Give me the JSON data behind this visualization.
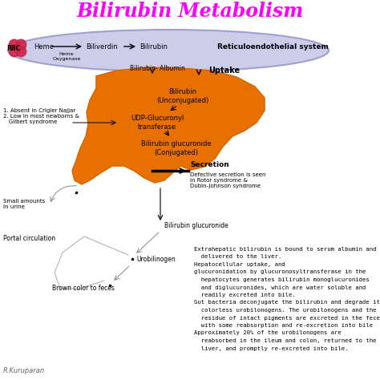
{
  "title": "Bilirubin Metabolism",
  "title_color": "#FF00FF",
  "bg_color": "#FFFFFF",
  "liver_color": "#E87000",
  "liver_edge_color": "#C06000",
  "credit": "R.Kuruparan",
  "ellipse_color": "#C8C8E8",
  "ellipse_edge": "#9999CC",
  "top_pathway": {
    "rbc_label": "RBC",
    "heme_label": "Heme",
    "biliverdin_label": "Biliverdin",
    "bilirubin_label": "Bilirubin",
    "enzyme_label": "Heme\nOxygenase",
    "reticuloendothelial": "Reticuloendothelial system"
  },
  "liver_labels": {
    "uptake": "Uptake",
    "bilirubin_unconj": "Bilirubin\n(Unconjugated)",
    "udp": "UDP-Glucuronyl\ntransferase",
    "bilirubin_conj": "Bilirubin glucuronide\n(Conjugated)",
    "secretion": "Secretion",
    "secretion_note": "Defective secretion is seen\nin Rotor syndrome &\nDubin-Johnson syndrome"
  },
  "left_labels": {
    "absent": "1. Absent in Crigler Najjar\n2. Low in most newborns &\n   Gilbert syndrome",
    "small_amounts": "Small amounts\nin urine",
    "portal": "Portal circulation",
    "bilialbumin": "Bilirubin- Albumin",
    "bili_glucuronide": "Bilirubin glucuronide",
    "urobilinogen": "Urobilinogen",
    "brown": "Brown color to feces"
  },
  "right_text_lines": [
    {
      "text": "Extrahepatic bilirubin is bound to serum albumin and",
      "indent": false
    },
    {
      "text": "  delivered to the liver.",
      "indent": false
    },
    {
      "text": "Hepatocellular uptake, and",
      "indent": false
    },
    {
      "text": "glucuronidation by glucuronosyltransferase in the",
      "indent": false
    },
    {
      "text": "  hepatocytes generates bilirubin monoglucuronides",
      "indent": false
    },
    {
      "text": "  and diglucuronides, which are water soluble and",
      "indent": false
    },
    {
      "text": "  readily excreted into bile.",
      "indent": false
    },
    {
      "text": "Gut bacteria deconjugate the bilirubin and degrade it to",
      "indent": false
    },
    {
      "text": "  colorless urobilonogens. The urobilonogens and the",
      "indent": false
    },
    {
      "text": "  residue of intact pigments are excreted in the feces,",
      "indent": false
    },
    {
      "text": "  with some reabsorption and re-excretion into bile",
      "indent": false
    },
    {
      "text": "Approximately 20% of the urobilonogens are",
      "indent": false
    },
    {
      "text": "  reabsorbed in the ileum and colon, returned to the",
      "indent": false
    },
    {
      "text": "  liver, and promptly re-excreted into bile.",
      "indent": false
    }
  ]
}
